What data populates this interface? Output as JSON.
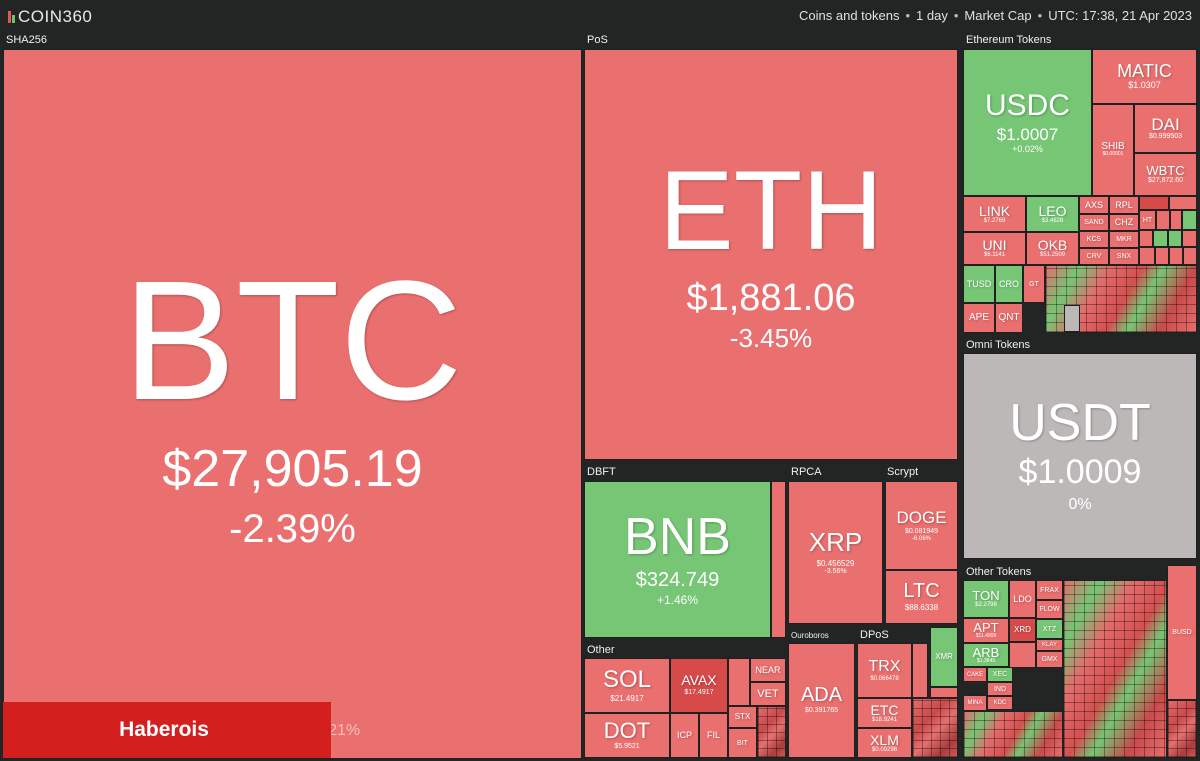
{
  "header": {
    "logo": "COIN360",
    "filter_type": "Coins and tokens",
    "filter_period": "1 day",
    "filter_metric": "Market Cap",
    "time": "UTC: 17:38, 21 Apr 2023"
  },
  "sections": {
    "sha256": "SHA256",
    "pos": "PoS",
    "eth_tokens": "Ethereum Tokens",
    "omni": "Omni Tokens",
    "dbft": "DBFT",
    "rpca": "RPCA",
    "scrypt": "Scrypt",
    "other": "Other",
    "ouroboros": "Ouroboros",
    "dpos": "DPoS",
    "other_tokens": "Other Tokens"
  },
  "coins": {
    "btc": {
      "sym": "BTC",
      "price": "$27,905.19",
      "change": "-2.39%"
    },
    "eth": {
      "sym": "ETH",
      "price": "$1,881.06",
      "change": "-3.45%"
    },
    "usdt": {
      "sym": "USDT",
      "price": "$1.0009",
      "change": "0%"
    },
    "usdc": {
      "sym": "USDC",
      "price": "$1.0007",
      "change": "+0.02%"
    },
    "matic": {
      "sym": "MATIC",
      "price": "$1.0307"
    },
    "dai": {
      "sym": "DAI",
      "price": "$0.999503"
    },
    "shib": {
      "sym": "SHIB",
      "price": "$0.00001"
    },
    "wbtc": {
      "sym": "WBTC",
      "price": "$27,872.60"
    },
    "link": {
      "sym": "LINK",
      "price": "$7.2769"
    },
    "leo": {
      "sym": "LEO",
      "price": "$3.4828"
    },
    "uni": {
      "sym": "UNI",
      "price": "$6.1141"
    },
    "okb": {
      "sym": "OKB",
      "price": "$51.2509"
    },
    "axs": {
      "sym": "AXS"
    },
    "rpl": {
      "sym": "RPL"
    },
    "sand": {
      "sym": "SAND"
    },
    "chz": {
      "sym": "CHZ"
    },
    "kcs": {
      "sym": "KCS"
    },
    "mkr": {
      "sym": "MKR"
    },
    "crv": {
      "sym": "CRV"
    },
    "snx": {
      "sym": "SNX"
    },
    "ht": {
      "sym": "HT"
    },
    "tusd": {
      "sym": "TUSD"
    },
    "cro": {
      "sym": "CRO"
    },
    "gt": {
      "sym": "GT"
    },
    "ape": {
      "sym": "APE"
    },
    "qnt": {
      "sym": "QNT"
    },
    "bnb": {
      "sym": "BNB",
      "price": "$324.749",
      "change": "+1.46%"
    },
    "xrp": {
      "sym": "XRP",
      "price": "$0.456529",
      "change": "-3.56%"
    },
    "doge": {
      "sym": "DOGE",
      "price": "$0.081949",
      "change": "-6.06%"
    },
    "ltc": {
      "sym": "LTC",
      "price": "$88.6338"
    },
    "sol": {
      "sym": "SOL",
      "price": "$21.4917"
    },
    "avax": {
      "sym": "AVAX",
      "price": "$17.4917"
    },
    "near": {
      "sym": "NEAR"
    },
    "vet": {
      "sym": "VET"
    },
    "stx": {
      "sym": "STX"
    },
    "dot": {
      "sym": "DOT",
      "price": "$5.9521"
    },
    "icp": {
      "sym": "ICP"
    },
    "fil": {
      "sym": "FIL"
    },
    "bit": {
      "sym": "BIT"
    },
    "ada": {
      "sym": "ADA",
      "price": "$0.391765"
    },
    "trx": {
      "sym": "TRX",
      "price": "$0.066478"
    },
    "etc": {
      "sym": "ETC",
      "price": "$18.9241"
    },
    "xlm": {
      "sym": "XLM",
      "price": "$0.09298"
    },
    "xmr": {
      "sym": "XMR"
    },
    "ton": {
      "sym": "TON",
      "price": "$2.2798"
    },
    "ldo": {
      "sym": "LDO"
    },
    "frax": {
      "sym": "FRAX"
    },
    "flow": {
      "sym": "FLOW"
    },
    "apt": {
      "sym": "APT",
      "price": "$11.4909"
    },
    "xrd": {
      "sym": "XRD"
    },
    "xtz": {
      "sym": "XTZ"
    },
    "arb": {
      "sym": "ARB",
      "price": "$1.3843"
    },
    "gmx": {
      "sym": "GMX"
    },
    "klay": {
      "sym": "KLAY"
    },
    "cake": {
      "sym": "CAKE"
    },
    "xec": {
      "sym": "XEC"
    },
    "ind": {
      "sym": "IND"
    },
    "mina": {
      "sym": "MINA"
    },
    "kdc": {
      "sym": "KDC"
    },
    "busd": {
      "sym": "BUSD"
    }
  },
  "footer": {
    "dominance": "Dominance: 45.21%",
    "watermark": "Haberois"
  },
  "colors": {
    "down": "#ea6f6f",
    "up": "#76c675",
    "neutral": "#bdb8b8",
    "background": "#232525"
  }
}
